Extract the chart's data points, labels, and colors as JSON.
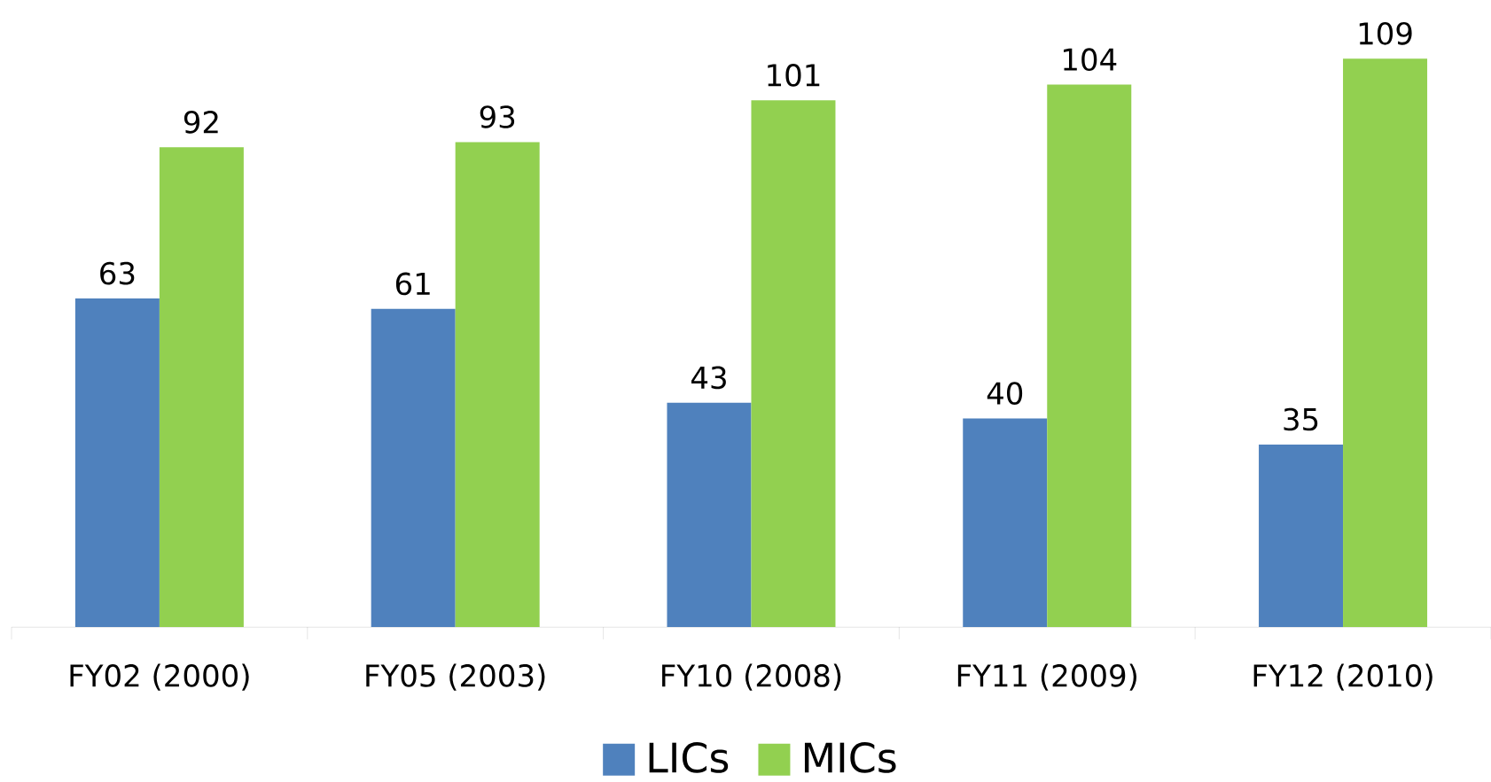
{
  "chart_data": {
    "type": "bar",
    "categories": [
      "FY02 (2000)",
      "FY05 (2003)",
      "FY10 (2008)",
      "FY11 (2009)",
      "FY12 (2010)"
    ],
    "series": [
      {
        "name": "LICs",
        "color": "#4f81bd",
        "values": [
          63,
          61,
          43,
          40,
          35
        ]
      },
      {
        "name": "MICs",
        "color": "#92d050",
        "values": [
          92,
          93,
          101,
          104,
          109
        ]
      }
    ],
    "data_labels": true,
    "legend": "bottom"
  }
}
